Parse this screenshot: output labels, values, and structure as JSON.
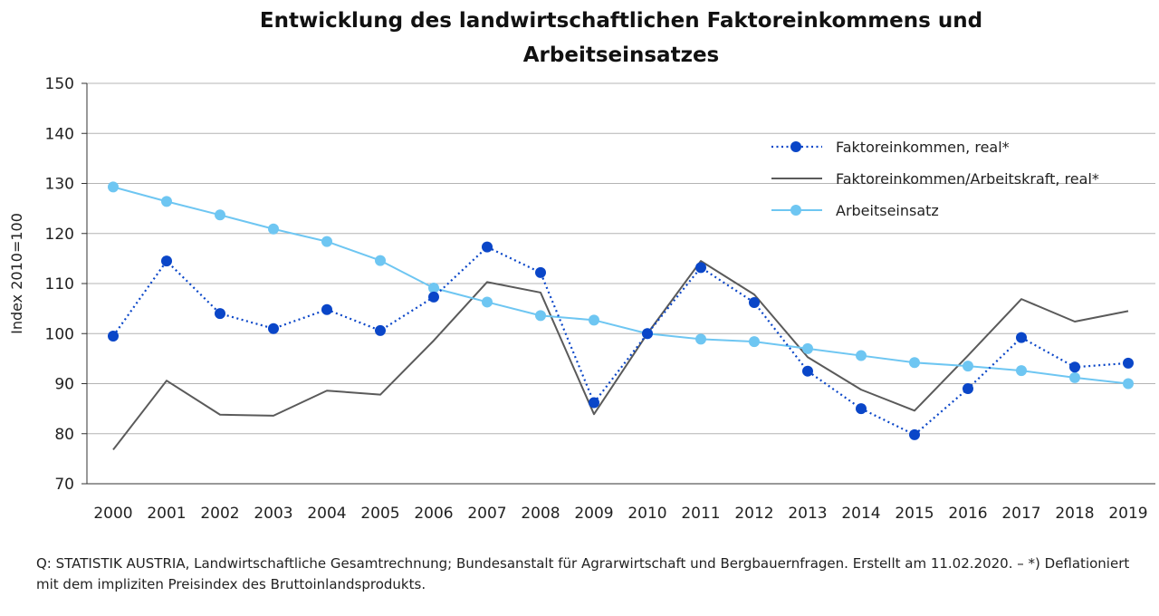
{
  "chart_data": {
    "type": "line",
    "title": "Entwicklung des landwirtschaftlichen Faktoreinkommens und Arbeitseinsatzes",
    "title_lines": [
      "Entwicklung des landwirtschaftlichen Faktoreinkommens und",
      "Arbeitseinsatzes"
    ],
    "ylabel": "Index 2010=100",
    "xlabel": "",
    "ylim": [
      70,
      150
    ],
    "yticks": [
      70,
      80,
      90,
      100,
      110,
      120,
      130,
      140,
      150
    ],
    "grid": true,
    "legend_position": "top-right",
    "categories": [
      "2000",
      "2001",
      "2002",
      "2003",
      "2004",
      "2005",
      "2006",
      "2007",
      "2008",
      "2009",
      "2010",
      "2011",
      "2012",
      "2013",
      "2014",
      "2015",
      "2016",
      "2017",
      "2018",
      "2019"
    ],
    "series": [
      {
        "name": "Faktoreinkommen, real*",
        "color": "#0a46c8",
        "style": "dotted-markers",
        "values": [
          99.5,
          114.5,
          104.0,
          101.0,
          104.8,
          100.6,
          107.3,
          117.3,
          112.2,
          86.2,
          100.0,
          113.2,
          106.2,
          92.5,
          85.0,
          79.8,
          89.0,
          99.2,
          93.3,
          94.1
        ]
      },
      {
        "name": "Faktoreinkommen/Arbeitskraft, real*",
        "color": "#5a5a5a",
        "style": "solid",
        "values": [
          76.8,
          90.6,
          83.8,
          83.6,
          88.6,
          87.8,
          98.6,
          110.3,
          108.2,
          83.9,
          100.0,
          114.5,
          107.8,
          95.3,
          88.8,
          84.6,
          95.6,
          106.9,
          102.4,
          104.5
        ]
      },
      {
        "name": "Arbeitseinsatz",
        "color": "#6ec6f2",
        "style": "solid-markers",
        "values": [
          129.3,
          126.4,
          123.7,
          120.9,
          118.4,
          114.6,
          109.1,
          106.3,
          103.6,
          102.7,
          100.0,
          98.9,
          98.4,
          97.0,
          95.6,
          94.2,
          93.5,
          92.6,
          91.2,
          90.0
        ]
      }
    ]
  },
  "source": {
    "text": "Q: STATISTIK AUSTRIA, Landwirtschaftliche Gesamtrechnung; Bundesanstalt für Agrarwirtschaft und Bergbauernfragen. Erstellt am 11.02.2020. – *) Deflationiert mit dem impliziten Preisindex des Bruttoinlandsprodukts."
  }
}
